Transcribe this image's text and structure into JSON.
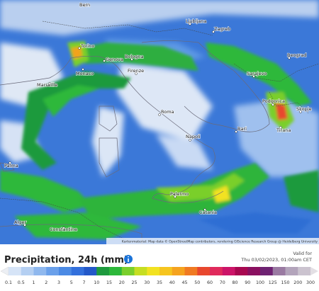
{
  "map": {
    "cities": [
      "Bern",
      "Torino",
      "Genova",
      "Monaco",
      "Marseille",
      "Bologna",
      "Firenze",
      "Roma",
      "Napoli",
      "Bari",
      "Palma",
      "Alger",
      "Constantine",
      "Palermo",
      "Catania",
      "Ljubljana",
      "Zagreb",
      "Sarajevo",
      "Beograd",
      "Podgorica",
      "Tirana",
      "Skopje"
    ],
    "attribution": "Kartenmaterial: Map data © OpenStreetMap contributors, rendering GIScience Research Group @ Heidelberg University"
  },
  "legend": {
    "title": "Precipitation, 24h (mm)",
    "valid_label": "Valid for",
    "valid_time": "Thu 03/02/2023, 01:00am CET",
    "stops": [
      {
        "label": "0.1",
        "color": "#d6e4f7"
      },
      {
        "label": "0.5",
        "color": "#b4cff2"
      },
      {
        "label": "1",
        "color": "#8fb8ee"
      },
      {
        "label": "2",
        "color": "#6aa0ea"
      },
      {
        "label": "3",
        "color": "#4b8ae4"
      },
      {
        "label": "5",
        "color": "#3370dc"
      },
      {
        "label": "7",
        "color": "#2358c8"
      },
      {
        "label": "10",
        "color": "#1e9a3e"
      },
      {
        "label": "15",
        "color": "#2db83a"
      },
      {
        "label": "20",
        "color": "#7acf2c"
      },
      {
        "label": "25",
        "color": "#c6de22"
      },
      {
        "label": "30",
        "color": "#f2e221"
      },
      {
        "label": "35",
        "color": "#f6c51f"
      },
      {
        "label": "40",
        "color": "#f5a31f"
      },
      {
        "label": "45",
        "color": "#f07a22"
      },
      {
        "label": "50",
        "color": "#e8472e"
      },
      {
        "label": "60",
        "color": "#e02a5c"
      },
      {
        "label": "70",
        "color": "#cc1468"
      },
      {
        "label": "80",
        "color": "#a80850"
      },
      {
        "label": "90",
        "color": "#8a1060"
      },
      {
        "label": "100",
        "color": "#6e2272"
      },
      {
        "label": "125",
        "color": "#9a7aa2"
      },
      {
        "label": "150",
        "color": "#b3a4bb"
      },
      {
        "label": "200",
        "color": "#cbc3cf"
      },
      {
        "label": "300",
        "color": "#e3dfe4"
      }
    ]
  }
}
